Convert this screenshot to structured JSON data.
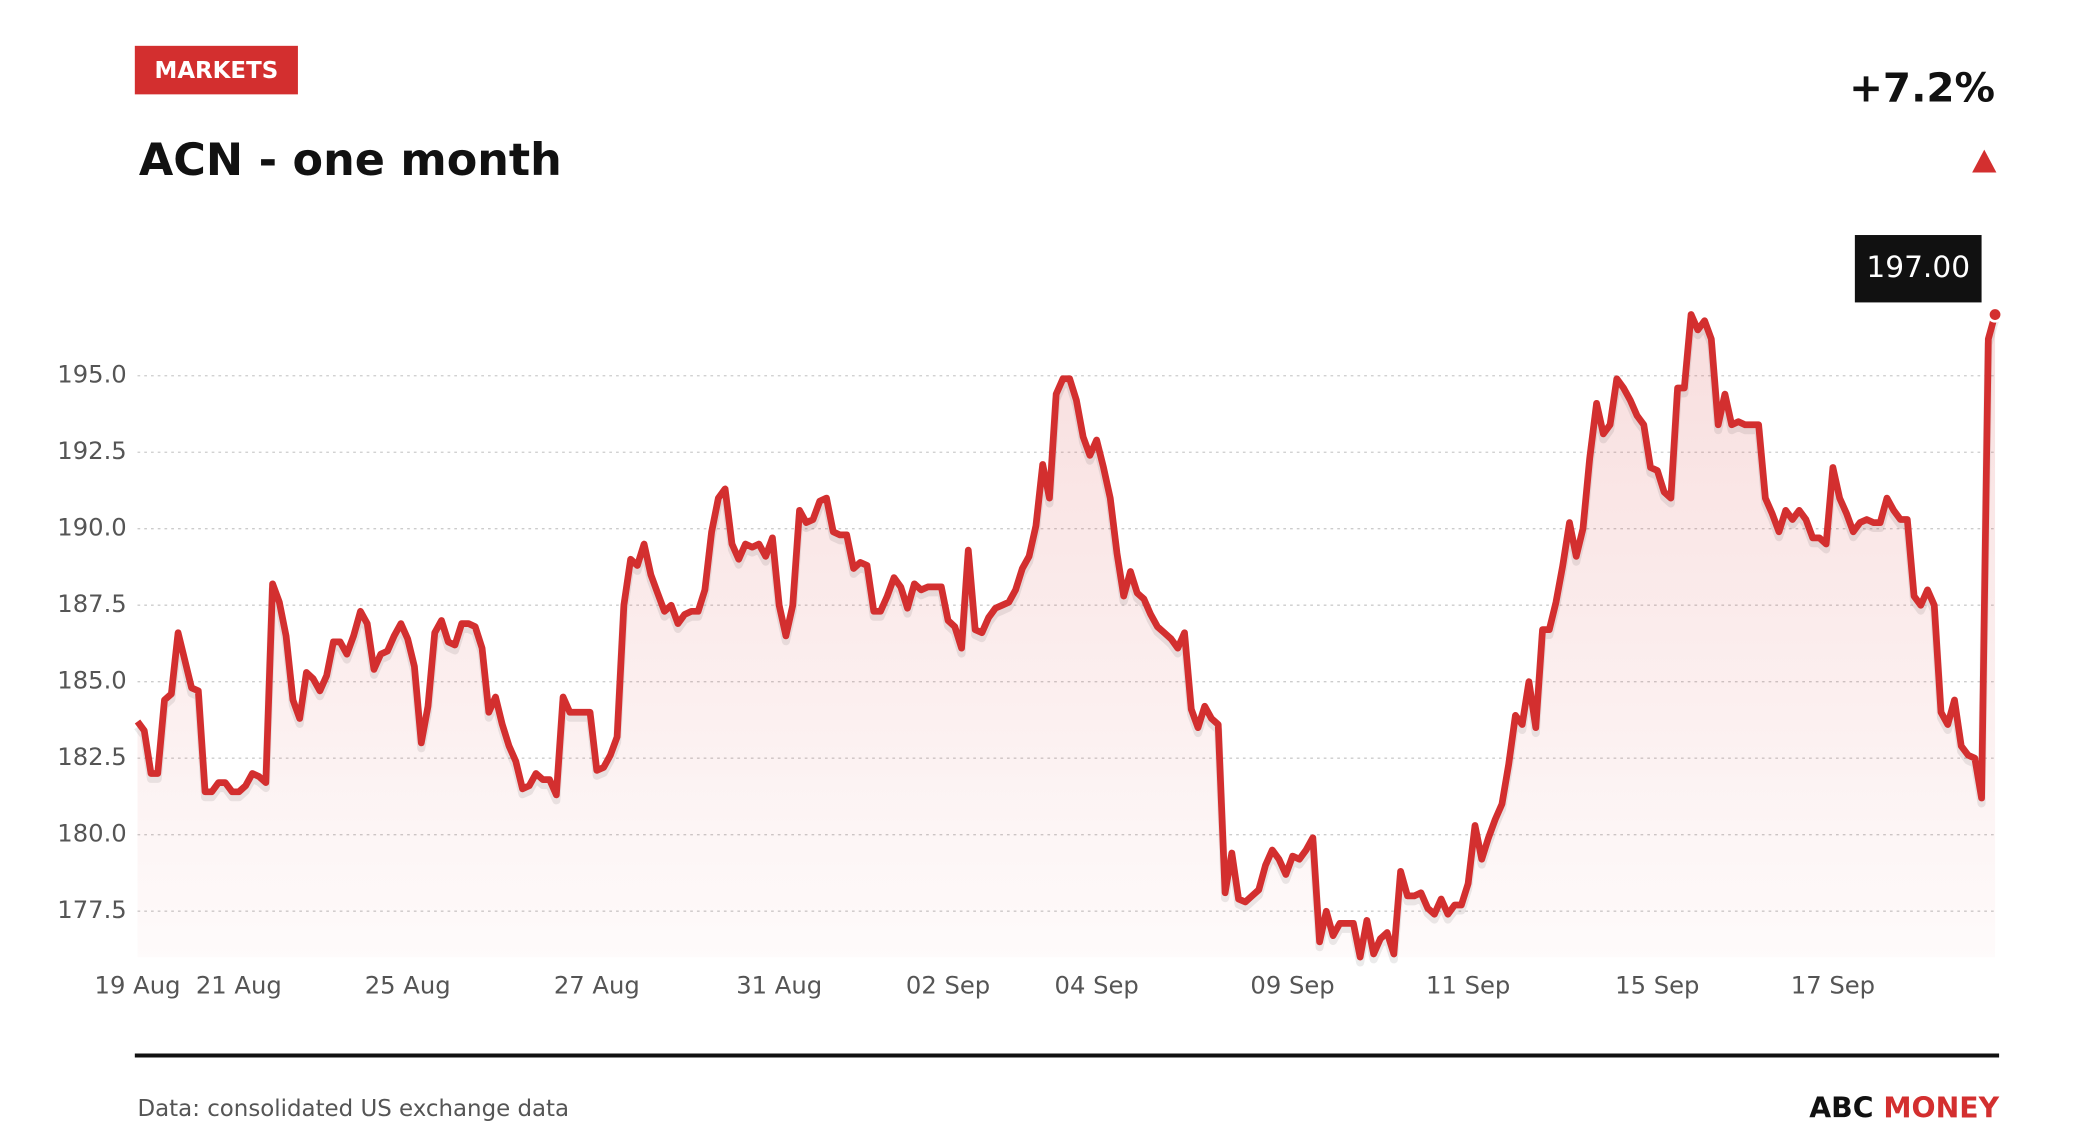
{
  "header": {
    "tag": "MARKETS",
    "change": "+7.2%"
  },
  "chart_data": {
    "type": "line",
    "title": "ACN - one month",
    "series": [
      {
        "name": "ACN",
        "color": "#d32f2f",
        "values": [
          183.7,
          183.4,
          182.0,
          182.0,
          184.4,
          184.6,
          186.6,
          185.7,
          184.8,
          184.7,
          181.4,
          181.4,
          181.7,
          181.7,
          181.4,
          181.4,
          181.6,
          182.0,
          181.9,
          181.7,
          188.2,
          187.6,
          186.5,
          184.4,
          183.8,
          185.3,
          185.1,
          184.7,
          185.2,
          186.3,
          186.3,
          185.9,
          186.5,
          187.3,
          186.9,
          185.4,
          185.9,
          186.0,
          186.5,
          186.9,
          186.4,
          185.5,
          183.0,
          184.2,
          186.6,
          187.0,
          186.3,
          186.2,
          186.9,
          186.9,
          186.8,
          186.1,
          184.0,
          184.5,
          183.6,
          182.9,
          182.4,
          181.5,
          181.6,
          182.0,
          181.8,
          181.8,
          181.3,
          184.5,
          184.0,
          184.0,
          184.0,
          184.0,
          182.1,
          182.2,
          182.6,
          183.2,
          187.5,
          189.0,
          188.8,
          189.5,
          188.5,
          187.9,
          187.3,
          187.5,
          186.9,
          187.2,
          187.3,
          187.3,
          188.0,
          189.9,
          191.0,
          191.3,
          189.5,
          189.0,
          189.5,
          189.4,
          189.5,
          189.1,
          189.7,
          187.5,
          186.5,
          187.5,
          190.6,
          190.2,
          190.3,
          190.9,
          191.0,
          189.9,
          189.8,
          189.8,
          188.7,
          188.9,
          188.8,
          187.3,
          187.3,
          187.8,
          188.4,
          188.1,
          187.4,
          188.2,
          188.0,
          188.1,
          188.1,
          188.1,
          187.0,
          186.8,
          186.1,
          189.3,
          186.7,
          186.6,
          187.1,
          187.4,
          187.5,
          187.6,
          188.0,
          188.7,
          189.1,
          190.1,
          192.1,
          191.0,
          194.4,
          194.9,
          194.9,
          194.2,
          193.0,
          192.4,
          192.9,
          192.0,
          191.0,
          189.2,
          187.8,
          188.6,
          187.9,
          187.7,
          187.2,
          186.8,
          186.6,
          186.4,
          186.1,
          186.6,
          184.1,
          183.5,
          184.2,
          183.8,
          183.6,
          178.1,
          179.4,
          177.9,
          177.8,
          178.0,
          178.2,
          179.0,
          179.5,
          179.2,
          178.7,
          179.3,
          179.2,
          179.5,
          179.9,
          176.5,
          177.5,
          176.7,
          177.1,
          177.1,
          177.1,
          176.0,
          177.2,
          176.1,
          176.6,
          176.8,
          176.1,
          178.8,
          178.0,
          178.0,
          178.1,
          177.6,
          177.4,
          177.9,
          177.4,
          177.7,
          177.7,
          178.4,
          180.3,
          179.2,
          179.9,
          180.5,
          181.0,
          182.3,
          183.9,
          183.6,
          185.0,
          183.5,
          186.7,
          186.7,
          187.6,
          188.8,
          190.2,
          189.1,
          190.0,
          192.3,
          194.1,
          193.1,
          193.4,
          194.9,
          194.6,
          194.2,
          193.7,
          193.4,
          192.0,
          191.9,
          191.2,
          191.0,
          194.6,
          194.6,
          197.0,
          196.5,
          196.8,
          196.2,
          193.4,
          194.4,
          193.4,
          193.5,
          193.4,
          193.4,
          193.4,
          191.0,
          190.5,
          189.9,
          190.6,
          190.3,
          190.6,
          190.3,
          189.7,
          189.7,
          189.5,
          192.0,
          191.0,
          190.5,
          189.9,
          190.2,
          190.3,
          190.2,
          190.2,
          191.0,
          190.6,
          190.3,
          190.3,
          187.8,
          187.5,
          188.0,
          187.5,
          184.0,
          183.6,
          184.4,
          182.9,
          182.6,
          182.5,
          181.2,
          196.2,
          197.0
        ]
      }
    ],
    "last_value_label": "197.00",
    "xlim": [
      0,
      275
    ],
    "xticks": [
      {
        "value": 0,
        "label": "19 Aug"
      },
      {
        "value": 15,
        "label": "21 Aug"
      },
      {
        "value": 40,
        "label": "25 Aug"
      },
      {
        "value": 68,
        "label": "27 Aug"
      },
      {
        "value": 95,
        "label": "31 Aug"
      },
      {
        "value": 120,
        "label": "02 Sep"
      },
      {
        "value": 142,
        "label": "04 Sep"
      },
      {
        "value": 171,
        "label": "09 Sep"
      },
      {
        "value": 197,
        "label": "11 Sep"
      },
      {
        "value": 225,
        "label": "15 Sep"
      },
      {
        "value": 251,
        "label": "17 Sep"
      }
    ],
    "ylim": [
      176,
      197.5
    ],
    "yticks": [
      177.5,
      {
        "value": 180,
        "label": "180.0"
      },
      182.5,
      {
        "value": 185,
        "label": "185.0"
      },
      187.5,
      {
        "value": 190,
        "label": "190.0"
      },
      192.5,
      {
        "value": 195,
        "label": "195.0"
      }
    ],
    "grid": true
  },
  "footer": {
    "source": "Data: consolidated US exchange data",
    "brand_first": "ABC",
    "brand_second": "MONEY"
  }
}
